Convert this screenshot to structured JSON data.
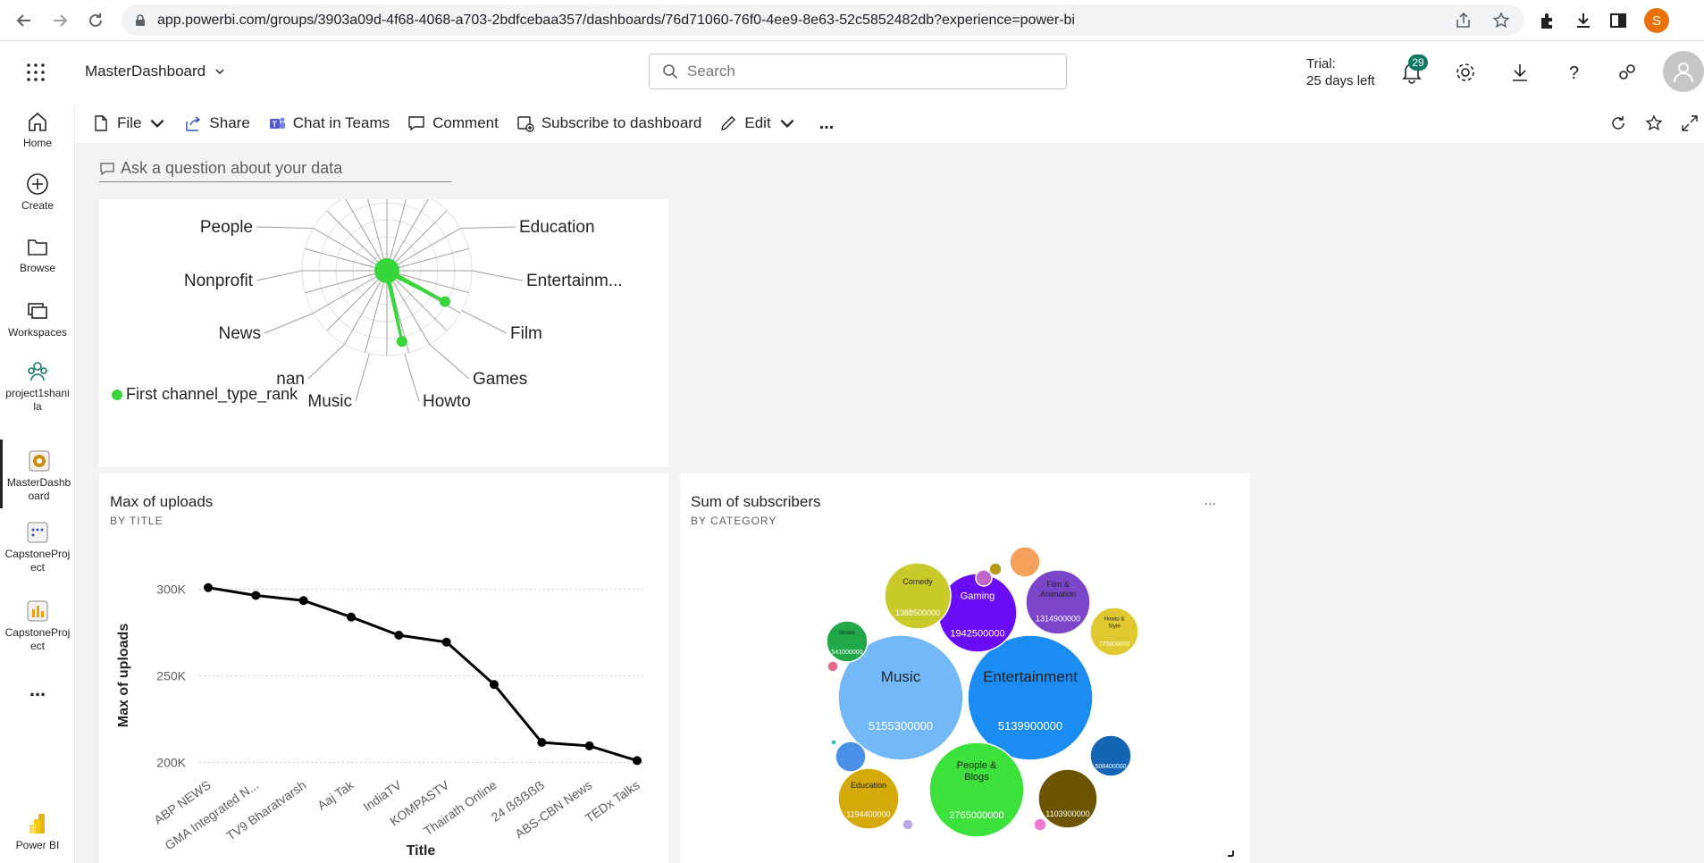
{
  "browser": {
    "url": "app.powerbi.com/groups/3903a09d-4f68-4068-a703-2bdfcebaa357/dashboards/76d71060-76f0-4ee9-8e63-52c5852482db?experience=power-bi",
    "profile_initial": "S"
  },
  "header": {
    "workspace": "MasterDashboard",
    "search_placeholder": "Search",
    "trial_line1": "Trial:",
    "trial_line2": "25 days left",
    "notification_count": "29"
  },
  "leftnav": {
    "items": [
      {
        "label": "Home"
      },
      {
        "label": "Create"
      },
      {
        "label": "Browse"
      },
      {
        "label": "Workspaces"
      },
      {
        "label": "project1shanila"
      },
      {
        "label": "MasterDashboard"
      },
      {
        "label": "CapstoneProject"
      },
      {
        "label": "CapstoneProject"
      },
      {
        "label": "..."
      },
      {
        "label": "Power BI"
      }
    ]
  },
  "toolbar": {
    "file": "File",
    "share": "Share",
    "chat": "Chat in Teams",
    "comment": "Comment",
    "subscribe": "Subscribe to dashboard",
    "edit": "Edit",
    "more": "..."
  },
  "qna": {
    "placeholder": "Ask a question about your data"
  },
  "radar": {
    "legend": "First channel_type_rank",
    "color": "#37d63a"
  },
  "uploads_tile": {
    "title": "Max of uploads",
    "subtitle": "BY TITLE"
  },
  "subscribers_tile": {
    "title": "Sum of subscribers",
    "subtitle": "BY CATEGORY",
    "more": "..."
  },
  "chart_data": [
    {
      "type": "radar",
      "categories": [
        "Education",
        "Entertainm...",
        "Film",
        "Games",
        "Howto",
        "Music",
        "nan",
        "News",
        "Nonprofit",
        "People"
      ],
      "series": [
        {
          "name": "First channel_type_rank",
          "values": [
            0,
            0,
            0.5,
            0,
            0.55,
            0,
            0,
            0,
            0,
            0
          ]
        }
      ]
    },
    {
      "type": "line",
      "title": "Max of uploads",
      "subtitle": "BY TITLE",
      "xlabel": "Title",
      "ylabel": "Max of uploads",
      "categories": [
        "ABP NEWS",
        "GMA Integrated N...",
        "TV9 Bharatvarsh",
        "Aaj Tak",
        "IndiaTV",
        "KOMPASTV",
        "Thairath Online",
        "24 ẞẞẞẞẞ",
        "ABS-CBN News",
        "TEDx Talks"
      ],
      "values": [
        301000,
        296500,
        293500,
        284000,
        273500,
        269500,
        245000,
        211500,
        209500,
        201000
      ],
      "ylim": [
        195000,
        305000
      ],
      "yticks": [
        200000,
        250000,
        300000
      ],
      "ytick_labels": [
        "200K",
        "250K",
        "300K"
      ],
      "grid": true
    },
    {
      "type": "bubble",
      "title": "Sum of subscribers",
      "subtitle": "BY CATEGORY",
      "items": [
        {
          "name": "Music",
          "value": 5155300000,
          "label": "5155300000",
          "color": "#74b9f7"
        },
        {
          "name": "Entertainment",
          "value": 5139900000,
          "label": "5139900000",
          "color": "#1a8cf2"
        },
        {
          "name": "People & Blogs",
          "value": 2765000000,
          "label": "2765000000",
          "color": "#3ce13c"
        },
        {
          "name": "Gaming",
          "value": 1942500000,
          "label": "1942500000",
          "color": "#6a0cf5"
        },
        {
          "name": "Comedy",
          "value": 1388500000,
          "label": "1388500000",
          "color": "#c9c92a"
        },
        {
          "name": "Film & Animation",
          "value": 1314900000,
          "label": "1314900000",
          "color": "#7a45c9"
        },
        {
          "name": "Education",
          "value": 1194400000,
          "label": "1194400000",
          "color": "#d4a90a"
        },
        {
          "name": "",
          "value": 1103900000,
          "label": "1103900000",
          "color": "#6b5300"
        },
        {
          "name": "Howto & Style",
          "value": 775900000,
          "label": "775900000",
          "color": "#e0c930"
        },
        {
          "name": "Shows",
          "value": 541000000,
          "label": "541000000",
          "color": "#21a848"
        },
        {
          "name": "",
          "value": 508400000,
          "label": "508400000",
          "color": "#1565b5"
        },
        {
          "name": "",
          "value": 0,
          "label": "",
          "color": "#4a8fe8"
        },
        {
          "name": "",
          "value": 0,
          "label": "",
          "color": "#f2a05a"
        },
        {
          "name": "",
          "value": 0,
          "label": "",
          "color": "#c064c8"
        },
        {
          "name": "",
          "value": 0,
          "label": "",
          "color": "#b89a1a"
        },
        {
          "name": "",
          "value": 0,
          "label": "",
          "color": "#e66a8a"
        },
        {
          "name": "",
          "value": 0,
          "label": "",
          "color": "#f07ad0"
        },
        {
          "name": "",
          "value": 0,
          "label": "",
          "color": "#b8a8e8"
        },
        {
          "name": "",
          "value": 0,
          "label": "",
          "color": "#e87070"
        },
        {
          "name": "",
          "value": 0,
          "label": "",
          "color": "#20c0b0"
        }
      ]
    }
  ]
}
